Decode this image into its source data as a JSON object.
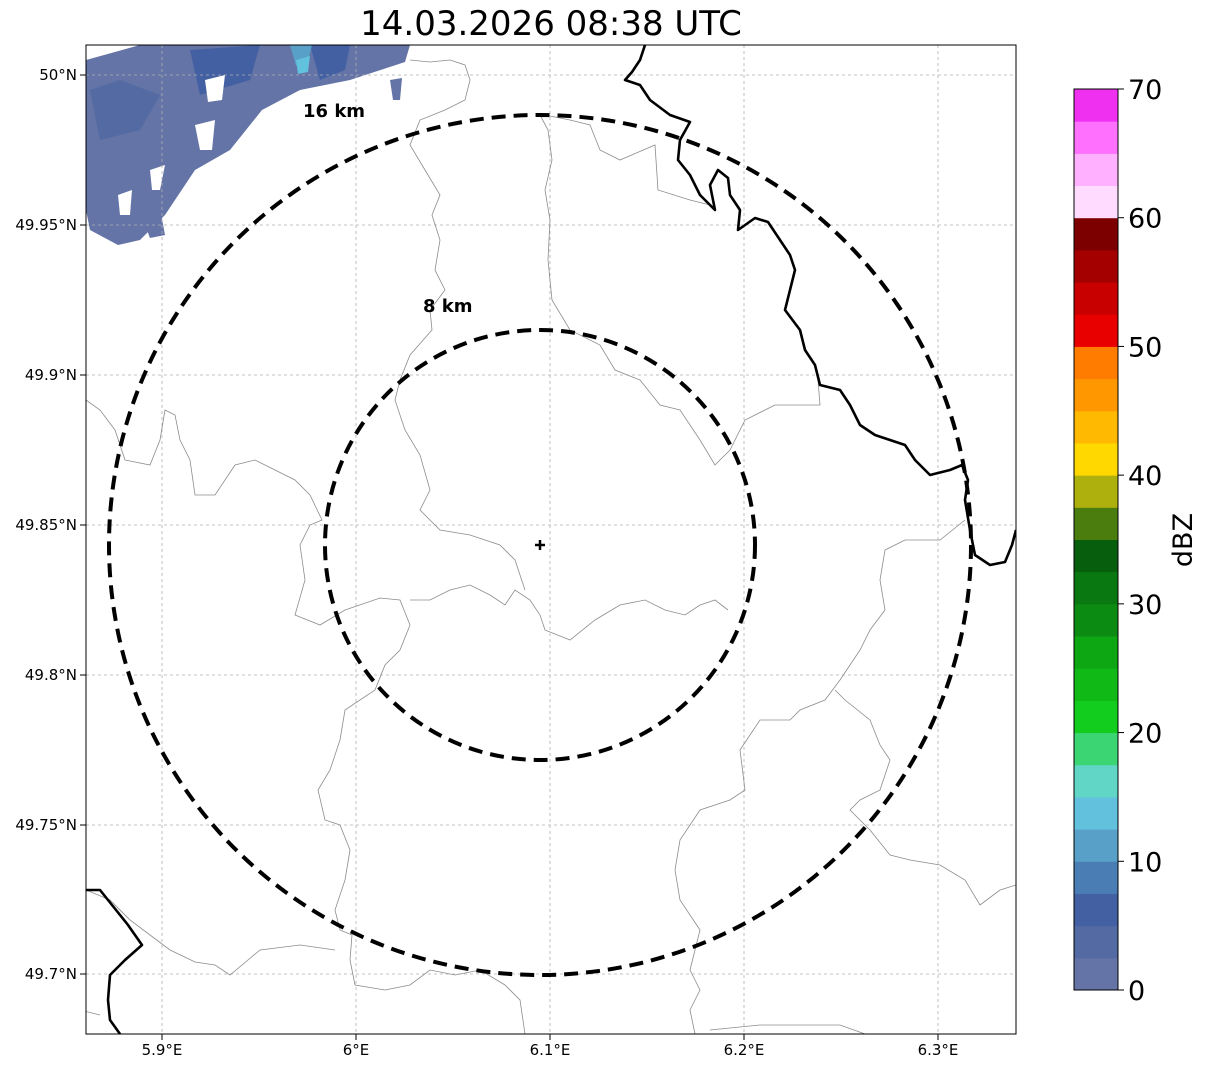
{
  "title": "14.03.2026 08:38 UTC",
  "x_ticks": [
    "5.9°E",
    "6°E",
    "6.1°E",
    "6.2°E",
    "6.3°E"
  ],
  "y_ticks": [
    "50°N",
    "49.95°N",
    "49.9°N",
    "49.85°N",
    "49.8°N",
    "49.75°N",
    "49.7°N"
  ],
  "rings": [
    {
      "label": "16 km",
      "radius_km": 16
    },
    {
      "label": "8 km",
      "radius_km": 8
    }
  ],
  "colorbar": {
    "label": "dBZ",
    "ticks": [
      "0",
      "10",
      "20",
      "30",
      "40",
      "50",
      "60",
      "70"
    ],
    "colors": [
      "#6474a6",
      "#536aa3",
      "#4360a3",
      "#4a7db3",
      "#58a0c8",
      "#62c1dd",
      "#62d6c6",
      "#3cd573",
      "#12cc1e",
      "#10b916",
      "#0ea714",
      "#0c8b12",
      "#0a7810",
      "#075e0c",
      "#4b7d0e",
      "#aeb00d",
      "#ffd800",
      "#ffb900",
      "#ff9800",
      "#ff7c00",
      "#e80000",
      "#c80000",
      "#a50000",
      "#7d0000",
      "#ffdcff",
      "#ffb0ff",
      "#ff70ff",
      "#f030f0"
    ]
  },
  "colors": {
    "ring": "#000000",
    "border": "#000000",
    "minor_border": "#8c8c8c",
    "grid": "#b0b0b0"
  }
}
